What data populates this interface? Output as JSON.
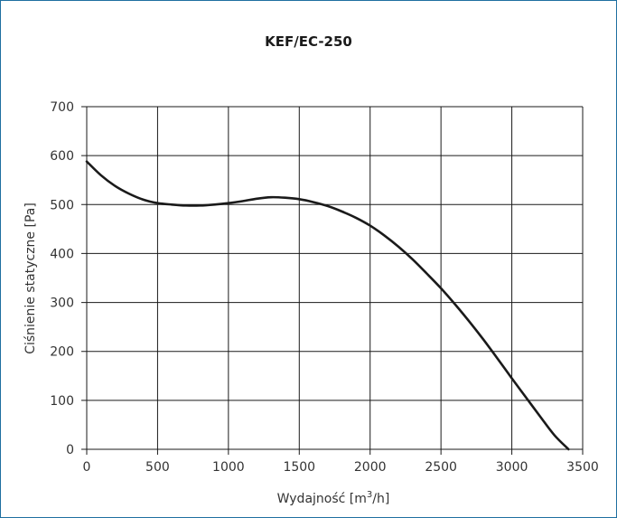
{
  "chart_data": {
    "type": "line",
    "title": "KEF/EC-250",
    "xlabel_main": "Wydajność [m",
    "xlabel_sup": "3",
    "xlabel_end": "/h]",
    "ylabel": "Ciśnienie statyczne [Pa]",
    "xlim": [
      0,
      3500
    ],
    "ylim": [
      0,
      700
    ],
    "x_ticks": [
      0,
      500,
      1000,
      1500,
      2000,
      2500,
      3000,
      3500
    ],
    "y_ticks": [
      0,
      100,
      200,
      300,
      400,
      500,
      600,
      700
    ],
    "grid": true,
    "series": [
      {
        "x": [
          0,
          100,
          200,
          300,
          400,
          500,
          600,
          700,
          800,
          900,
          1000,
          1100,
          1200,
          1300,
          1400,
          1500,
          1600,
          1700,
          1800,
          1900,
          2000,
          2100,
          2200,
          2300,
          2400,
          2500,
          2600,
          2700,
          2800,
          2900,
          3000,
          3100,
          3200,
          3300,
          3400
        ],
        "y": [
          588,
          560,
          538,
          522,
          510,
          503,
          500,
          498,
          498,
          500,
          503,
          507,
          512,
          515,
          514,
          511,
          505,
          497,
          486,
          473,
          457,
          437,
          414,
          388,
          359,
          329,
          296,
          261,
          224,
          185,
          145,
          106,
          67,
          29,
          0
        ],
        "color": "#1a1a1a"
      }
    ],
    "colors": {
      "frame": "#1f6fa0",
      "grid": "#1a1a1a",
      "line": "#1a1a1a"
    }
  }
}
